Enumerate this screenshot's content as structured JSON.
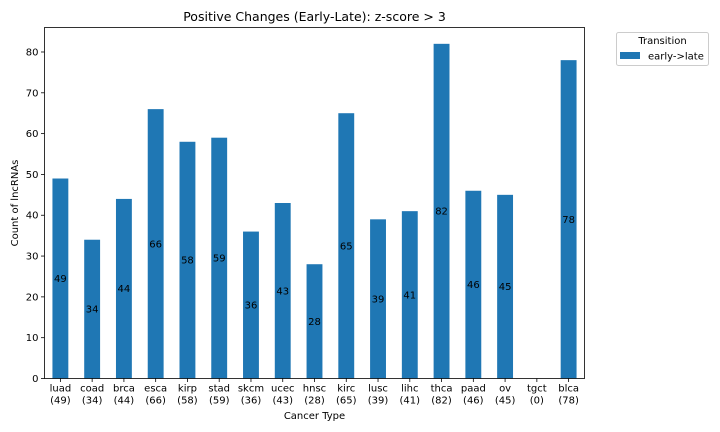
{
  "chart_data": {
    "type": "bar",
    "title": "Positive Changes (Early-Late): z-score > 3",
    "xlabel": "Cancer Type",
    "ylabel": "Count of lncRNAs",
    "ylim": [
      0,
      86
    ],
    "yticks": [
      0,
      10,
      20,
      30,
      40,
      50,
      60,
      70,
      80
    ],
    "grid": false,
    "legend_position": "outside-top-right",
    "legend_title": "Transition",
    "colors": {
      "bar": "#1f77b4"
    },
    "categories": [
      {
        "name": "luad",
        "count": "(49)"
      },
      {
        "name": "coad",
        "count": "(34)"
      },
      {
        "name": "brca",
        "count": "(44)"
      },
      {
        "name": "esca",
        "count": "(66)"
      },
      {
        "name": "kirp",
        "count": "(58)"
      },
      {
        "name": "stad",
        "count": "(59)"
      },
      {
        "name": "skcm",
        "count": "(36)"
      },
      {
        "name": "ucec",
        "count": "(43)"
      },
      {
        "name": "hnsc",
        "count": "(28)"
      },
      {
        "name": "kirc",
        "count": "(65)"
      },
      {
        "name": "lusc",
        "count": "(39)"
      },
      {
        "name": "lihc",
        "count": "(41)"
      },
      {
        "name": "thca",
        "count": "(82)"
      },
      {
        "name": "paad",
        "count": "(46)"
      },
      {
        "name": "ov",
        "count": "(45)"
      },
      {
        "name": "tgct",
        "count": "(0)"
      },
      {
        "name": "blca",
        "count": "(78)"
      }
    ],
    "series": [
      {
        "name": "early->late",
        "values": [
          49,
          34,
          44,
          66,
          58,
          59,
          36,
          43,
          28,
          65,
          39,
          41,
          82,
          46,
          45,
          0,
          78
        ]
      }
    ]
  }
}
